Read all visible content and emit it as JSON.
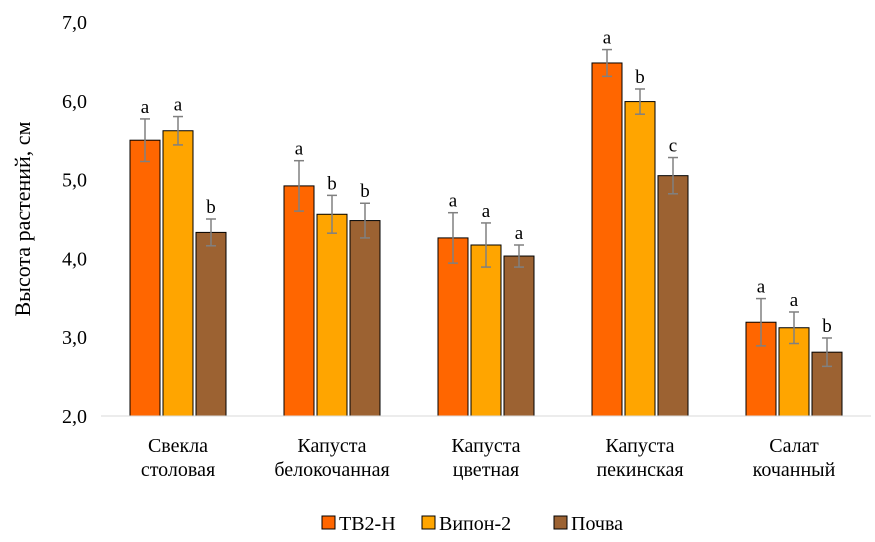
{
  "chart_data": {
    "type": "bar",
    "title": "",
    "xlabel": "",
    "ylabel": "Высота растений, см",
    "ylim": [
      2.0,
      7.0
    ],
    "yticks": [
      "2,0",
      "3,0",
      "4,0",
      "5,0",
      "6,0",
      "7,0"
    ],
    "grid": false,
    "legend_position": "bottom",
    "categories": [
      [
        "Свекла",
        "столовая"
      ],
      [
        "Капуста",
        "белокочанная"
      ],
      [
        "Капуста",
        "цветная"
      ],
      [
        "Капуста",
        "пекинская"
      ],
      [
        "Салат",
        "кочанный"
      ]
    ],
    "series": [
      {
        "name": "ТВ2-Н",
        "color": "#FF6600",
        "values": [
          5.5,
          4.92,
          4.26,
          6.48,
          3.19
        ],
        "errors": [
          0.27,
          0.32,
          0.32,
          0.17,
          0.3
        ],
        "labels": [
          "a",
          "a",
          "a",
          "a",
          "a"
        ]
      },
      {
        "name": "Випон-2",
        "color": "#FFA500",
        "values": [
          5.62,
          4.56,
          4.17,
          5.99,
          3.12
        ],
        "errors": [
          0.18,
          0.24,
          0.28,
          0.16,
          0.2
        ],
        "labels": [
          "a",
          "b",
          "a",
          "b",
          "a"
        ]
      },
      {
        "name": "Почва",
        "color": "#9C6232",
        "values": [
          4.33,
          4.48,
          4.03,
          5.05,
          2.81
        ],
        "errors": [
          0.17,
          0.22,
          0.14,
          0.23,
          0.18
        ],
        "labels": [
          "b",
          "b",
          "a",
          "c",
          "b"
        ]
      }
    ]
  }
}
